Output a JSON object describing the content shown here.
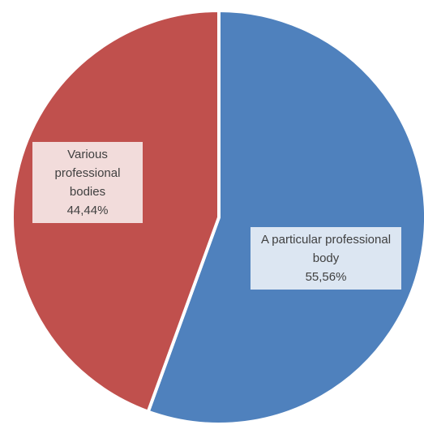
{
  "chart_data": {
    "type": "pie",
    "categories": [
      "A particular professional body",
      "Various professional bodies"
    ],
    "values": [
      55.56,
      44.44
    ],
    "value_labels": [
      "55,56%",
      "44,44%"
    ],
    "colors": [
      "#4f81bd",
      "#c0504d"
    ],
    "label_backgrounds": [
      "#dce6f2",
      "#f2dcdb"
    ]
  }
}
